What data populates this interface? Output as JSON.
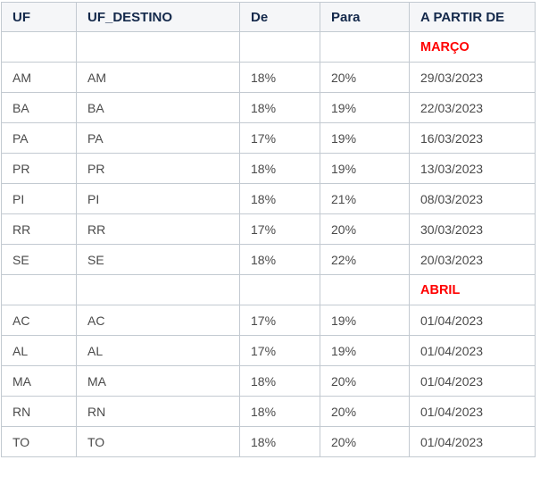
{
  "colors": {
    "border": "#c3cad1",
    "header_bg": "#f5f6f8",
    "header_text": "#14294b",
    "body_text": "#4a4a4a",
    "month_text": "#ff0000",
    "page_bg": "#ffffff"
  },
  "chart_data": {
    "type": "table",
    "title": "",
    "columns": [
      "UF",
      "UF_DESTINO",
      "De",
      "Para",
      "A PARTIR DE"
    ],
    "column_keys": [
      "uf",
      "uf-destino",
      "de",
      "para",
      "a-partir-de"
    ],
    "rows": [
      {
        "type": "month-separator",
        "cells": [
          "",
          "",
          "",
          "",
          "MARÇO"
        ]
      },
      {
        "type": "data",
        "cells": [
          "AM",
          "AM",
          "18%",
          "20%",
          "29/03/2023"
        ]
      },
      {
        "type": "data",
        "cells": [
          "BA",
          "BA",
          "18%",
          "19%",
          "22/03/2023"
        ]
      },
      {
        "type": "data",
        "cells": [
          "PA",
          "PA",
          "17%",
          "19%",
          "16/03/2023"
        ]
      },
      {
        "type": "data",
        "cells": [
          "PR",
          "PR",
          "18%",
          "19%",
          "13/03/2023"
        ]
      },
      {
        "type": "data",
        "cells": [
          "PI",
          "PI",
          "18%",
          "21%",
          "08/03/2023"
        ]
      },
      {
        "type": "data",
        "cells": [
          "RR",
          "RR",
          "17%",
          "20%",
          "30/03/2023"
        ]
      },
      {
        "type": "data",
        "cells": [
          "SE",
          "SE",
          "18%",
          "22%",
          "20/03/2023"
        ]
      },
      {
        "type": "month-separator",
        "cells": [
          "",
          "",
          "",
          "",
          "ABRIL"
        ]
      },
      {
        "type": "data",
        "cells": [
          "AC",
          "AC",
          "17%",
          "19%",
          "01/04/2023"
        ]
      },
      {
        "type": "data",
        "cells": [
          "AL",
          "AL",
          "17%",
          "19%",
          "01/04/2023"
        ]
      },
      {
        "type": "data",
        "cells": [
          "MA",
          "MA",
          "18%",
          "20%",
          "01/04/2023"
        ]
      },
      {
        "type": "data",
        "cells": [
          "RN",
          "RN",
          "18%",
          "20%",
          "01/04/2023"
        ]
      },
      {
        "type": "data",
        "cells": [
          "TO",
          "TO",
          "18%",
          "20%",
          "01/04/2023"
        ]
      }
    ]
  }
}
